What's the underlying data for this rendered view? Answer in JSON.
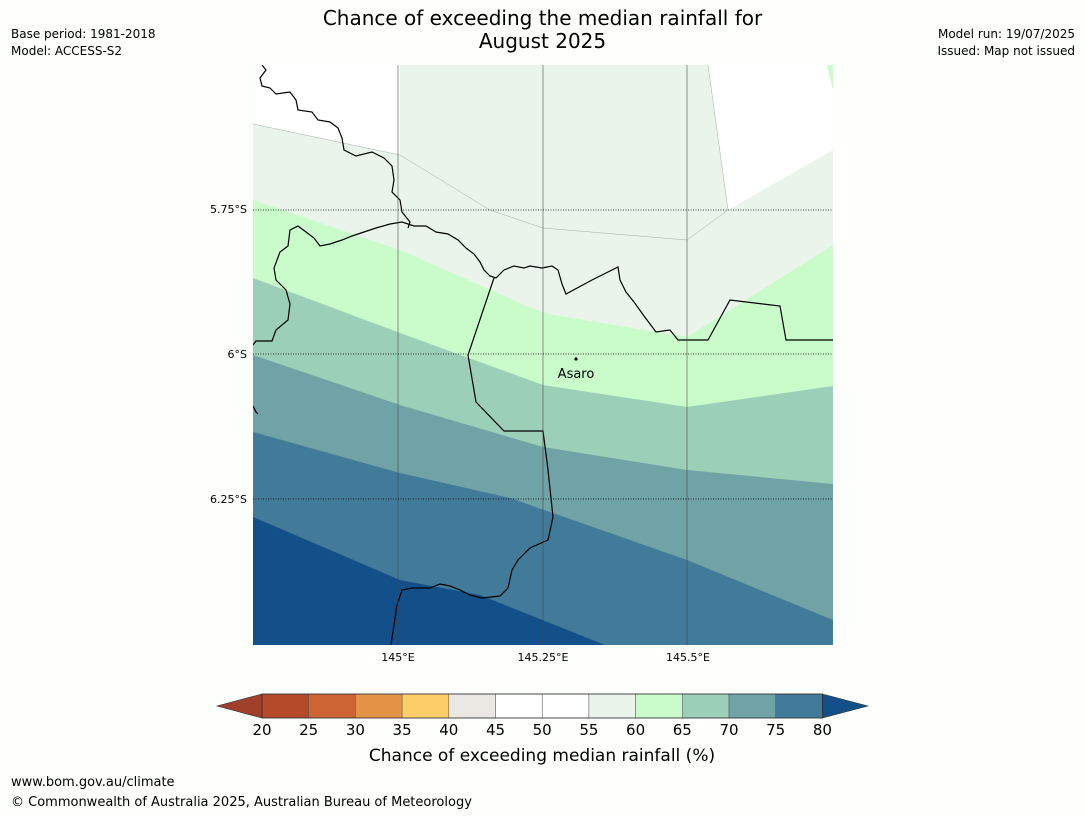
{
  "title": {
    "line1": "Chance of exceeding the median rainfall for",
    "line2": "August 2025"
  },
  "meta": {
    "base_period": "Base period: 1981-2018",
    "model": "Model: ACCESS-S2",
    "model_run": "Model run: 19/07/2025",
    "issued": "Issued: Map not issued"
  },
  "map": {
    "lat_labels": [
      "5.75°S",
      "6°S",
      "6.25°S"
    ],
    "lon_labels": [
      "145°E",
      "145.25°E",
      "145.5°E"
    ],
    "place": {
      "name": "Asaro"
    }
  },
  "colorbar": {
    "ticks": [
      "20",
      "25",
      "30",
      "35",
      "40",
      "45",
      "50",
      "55",
      "60",
      "65",
      "70",
      "75",
      "80"
    ],
    "label": "Chance of exceeding median rainfall (%)",
    "colors": {
      "below_20": "#a0402a",
      "20_25": "#b54a28",
      "25_30": "#cc6533",
      "30_35": "#e39446",
      "35_40": "#fdcd68",
      "40_45": "#eae8e3",
      "45_50": "#ffffff",
      "50_55": "#ffffff",
      "55_60": "#eaf4ea",
      "60_65": "#c9fcca",
      "65_70": "#9ccfb8",
      "70_75": "#6fa3a6",
      "75_80": "#427b99",
      "above_80": "#134f88"
    }
  },
  "footer": {
    "url": "www.bom.gov.au/climate",
    "copyright": "© Commonwealth of Australia 2025, Australian Bureau of Meteorology"
  }
}
